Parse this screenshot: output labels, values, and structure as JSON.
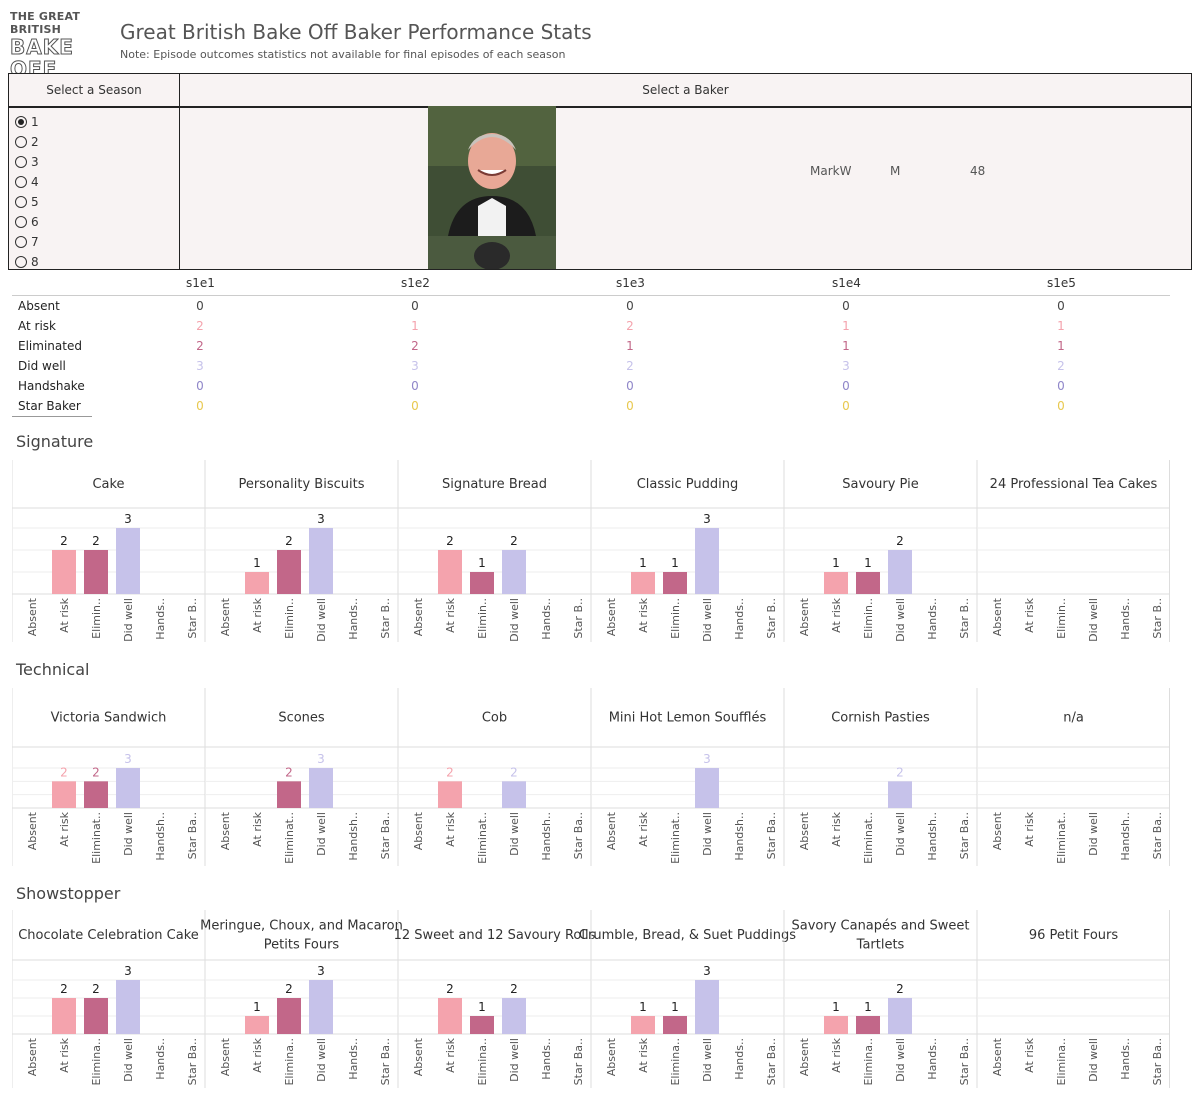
{
  "header": {
    "logo_line1": "THE GREAT BRITISH",
    "logo_line2": "BAKE OFF",
    "title": "Great British Bake Off Baker Performance Stats",
    "note": "Note: Episode outcomes statistics not available for final episodes of each season"
  },
  "season_selector": {
    "header": "Select a Season",
    "options": [
      "1",
      "2",
      "3",
      "4",
      "5",
      "6",
      "7",
      "8"
    ],
    "selected": "1"
  },
  "baker_selector": {
    "header": "Select a Baker",
    "name": "MarkW",
    "gender": "M",
    "age": "48"
  },
  "colors": {
    "Absent": "#9a9a9a",
    "At risk": "#f4a3ad",
    "Eliminated": "#c26789",
    "Did well": "#c6c2ea",
    "Handshake": "#8f86c9",
    "Star Baker": "#e8c84e"
  },
  "stats_table": {
    "columns": [
      "s1e1",
      "s1e2",
      "s1e3",
      "s1e4",
      "s1e5"
    ],
    "rows": [
      {
        "label": "Absent",
        "values": [
          "0",
          "0",
          "0",
          "0",
          "0"
        ]
      },
      {
        "label": "At risk",
        "values": [
          "2",
          "1",
          "2",
          "1",
          "1"
        ]
      },
      {
        "label": "Eliminated",
        "values": [
          "2",
          "2",
          "1",
          "1",
          "1"
        ]
      },
      {
        "label": "Did well",
        "values": [
          "3",
          "3",
          "2",
          "3",
          "2"
        ]
      },
      {
        "label": "Handshake",
        "values": [
          "0",
          "0",
          "0",
          "0",
          "0"
        ]
      },
      {
        "label": "Star Baker",
        "values": [
          "0",
          "0",
          "0",
          "0",
          "0"
        ]
      }
    ]
  },
  "chart_data": [
    {
      "section": "Signature",
      "type": "bar",
      "categories_full": [
        "Absent",
        "At risk",
        "Eliminated",
        "Did well",
        "Handshake",
        "Star Baker"
      ],
      "category_labels": [
        "Absent",
        "At risk",
        "Elimin..",
        "Did well",
        "Hands..",
        "Star B.."
      ],
      "panels": [
        {
          "title": "Cake",
          "values": [
            0,
            2,
            2,
            3,
            0,
            0
          ],
          "labels": [
            "",
            "2",
            "2",
            "3",
            "",
            ""
          ]
        },
        {
          "title": "Personality Biscuits",
          "values": [
            0,
            1,
            2,
            3,
            0,
            0
          ],
          "labels": [
            "",
            "1",
            "2",
            "3",
            "",
            ""
          ]
        },
        {
          "title": "Signature Bread",
          "values": [
            0,
            2,
            1,
            2,
            0,
            0
          ],
          "labels": [
            "",
            "2",
            "1",
            "2",
            "",
            ""
          ]
        },
        {
          "title": "Classic Pudding",
          "values": [
            0,
            1,
            1,
            3,
            0,
            0
          ],
          "labels": [
            "",
            "1",
            "1",
            "3",
            "",
            ""
          ]
        },
        {
          "title": "Savoury Pie",
          "values": [
            0,
            1,
            1,
            2,
            0,
            0
          ],
          "labels": [
            "",
            "1",
            "1",
            "2",
            "",
            ""
          ]
        },
        {
          "title": "24 Professional Tea Cakes",
          "values": [
            0,
            0,
            0,
            0,
            0,
            0
          ],
          "labels": [
            "",
            "",
            "",
            "",
            "",
            ""
          ]
        }
      ],
      "ylim": [
        0,
        3
      ]
    },
    {
      "section": "Technical",
      "type": "bar",
      "categories_full": [
        "Absent",
        "At risk",
        "Eliminated",
        "Did well",
        "Handshake",
        "Star Baker"
      ],
      "category_labels": [
        "Absent",
        "At risk",
        "Eliminat..",
        "Did well",
        "Handsh..",
        "Star Ba.."
      ],
      "panels": [
        {
          "title": "Victoria Sandwich",
          "values": [
            0,
            2,
            2,
            3,
            0,
            0
          ],
          "labels": [
            "",
            "2",
            "2",
            "3",
            "",
            ""
          ]
        },
        {
          "title": "Scones",
          "values": [
            0,
            0,
            2,
            3,
            0,
            0
          ],
          "labels": [
            "",
            "",
            "2",
            "3",
            "",
            ""
          ]
        },
        {
          "title": "Cob",
          "values": [
            0,
            2,
            0,
            2,
            0,
            0
          ],
          "labels": [
            "",
            "2",
            "",
            "2",
            "",
            ""
          ]
        },
        {
          "title": "Mini Hot Lemon Soufflés",
          "values": [
            0,
            0,
            0,
            3,
            0,
            0
          ],
          "labels": [
            "",
            "",
            "",
            "3",
            "",
            ""
          ]
        },
        {
          "title": "Cornish Pasties",
          "values": [
            0,
            0,
            0,
            2,
            0,
            0
          ],
          "labels": [
            "",
            "",
            "",
            "2",
            "",
            ""
          ]
        },
        {
          "title": "n/a",
          "values": [
            0,
            0,
            0,
            0,
            0,
            0
          ],
          "labels": [
            "",
            "",
            "",
            "",
            "",
            ""
          ]
        }
      ],
      "ylim": [
        0,
        3
      ]
    },
    {
      "section": "Showstopper",
      "type": "bar",
      "categories_full": [
        "Absent",
        "At risk",
        "Eliminated",
        "Did well",
        "Handshake",
        "Star Baker"
      ],
      "category_labels": [
        "Absent",
        "At risk",
        "Elimina..",
        "Did well",
        "Hands..",
        "Star Ba.."
      ],
      "panels": [
        {
          "title": "Chocolate Celebration Cake",
          "values": [
            0,
            2,
            2,
            3,
            0,
            0
          ],
          "labels": [
            "",
            "2",
            "2",
            "3",
            "",
            ""
          ]
        },
        {
          "title": "Meringue, Choux, and Macaron Petits Fours",
          "values": [
            0,
            1,
            2,
            3,
            0,
            0
          ],
          "labels": [
            "",
            "1",
            "2",
            "3",
            "",
            ""
          ]
        },
        {
          "title": "12 Sweet and 12 Savoury Rolls",
          "values": [
            0,
            2,
            1,
            2,
            0,
            0
          ],
          "labels": [
            "",
            "2",
            "1",
            "2",
            "",
            ""
          ]
        },
        {
          "title": "Crumble, Bread, & Suet Puddings",
          "values": [
            0,
            1,
            1,
            3,
            0,
            0
          ],
          "labels": [
            "",
            "1",
            "1",
            "3",
            "",
            ""
          ]
        },
        {
          "title": "Savory Canapés and Sweet Tartlets",
          "values": [
            0,
            1,
            1,
            2,
            0,
            0
          ],
          "labels": [
            "",
            "1",
            "1",
            "2",
            "",
            ""
          ]
        },
        {
          "title": "96 Petit Fours",
          "values": [
            0,
            0,
            0,
            0,
            0,
            0
          ],
          "labels": [
            "",
            "",
            "",
            "",
            "",
            ""
          ]
        }
      ],
      "ylim": [
        0,
        3
      ]
    }
  ]
}
